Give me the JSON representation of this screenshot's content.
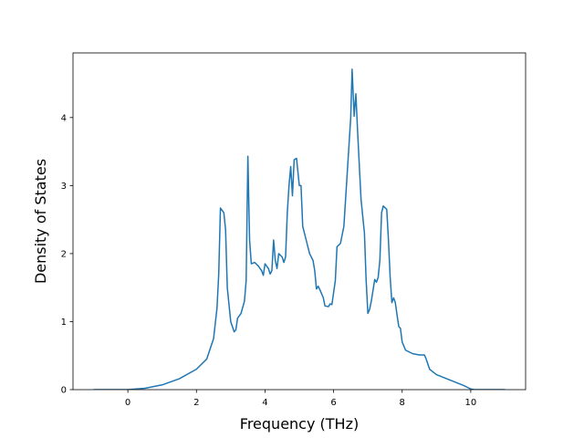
{
  "chart_data": {
    "type": "line",
    "xlabel": "Frequency (THz)",
    "ylabel": "Density of States",
    "xlim": [
      -1.6,
      11.6
    ],
    "ylim": [
      0,
      4.95
    ],
    "xticks": [
      0,
      2,
      4,
      6,
      8,
      10
    ],
    "yticks": [
      0,
      1,
      2,
      3,
      4
    ],
    "series": [
      {
        "color": "#1f77b4",
        "x": [
          -1,
          0,
          0.5,
          1,
          1.5,
          2,
          2.3,
          2.5,
          2.6,
          2.65,
          2.7,
          2.8,
          2.85,
          2.9,
          3.0,
          3.1,
          3.15,
          3.2,
          3.3,
          3.4,
          3.45,
          3.5,
          3.55,
          3.6,
          3.7,
          3.8,
          3.9,
          3.95,
          4.0,
          4.1,
          4.15,
          4.2,
          4.25,
          4.3,
          4.35,
          4.4,
          4.5,
          4.55,
          4.6,
          4.65,
          4.7,
          4.75,
          4.8,
          4.85,
          4.92,
          5.0,
          5.05,
          5.1,
          5.2,
          5.3,
          5.4,
          5.45,
          5.5,
          5.55,
          5.6,
          5.7,
          5.75,
          5.85,
          5.9,
          5.95,
          6.05,
          6.1,
          6.2,
          6.3,
          6.35,
          6.45,
          6.5,
          6.54,
          6.6,
          6.65,
          6.7,
          6.8,
          6.9,
          6.95,
          7.0,
          7.05,
          7.1,
          7.2,
          7.25,
          7.3,
          7.35,
          7.4,
          7.45,
          7.55,
          7.6,
          7.65,
          7.7,
          7.75,
          7.8,
          7.85,
          7.9,
          7.95,
          8.0,
          8.1,
          8.3,
          8.5,
          8.65,
          8.7,
          8.8,
          9.0,
          9.4,
          9.8,
          10.0,
          10.1,
          11
        ],
        "values": [
          0,
          0,
          0.02,
          0.07,
          0.16,
          0.3,
          0.45,
          0.75,
          1.2,
          1.7,
          2.67,
          2.6,
          2.35,
          1.5,
          1.0,
          0.85,
          0.88,
          1.05,
          1.12,
          1.3,
          1.6,
          3.43,
          2.2,
          1.85,
          1.87,
          1.82,
          1.75,
          1.68,
          1.85,
          1.78,
          1.7,
          1.75,
          2.2,
          1.9,
          1.78,
          2.0,
          1.95,
          1.87,
          1.95,
          2.6,
          3.0,
          3.28,
          2.85,
          3.38,
          3.4,
          3.0,
          3.0,
          2.4,
          2.2,
          2.0,
          1.9,
          1.75,
          1.48,
          1.52,
          1.47,
          1.35,
          1.23,
          1.22,
          1.26,
          1.25,
          1.6,
          2.1,
          2.15,
          2.4,
          2.8,
          3.6,
          4.0,
          4.71,
          4.02,
          4.35,
          3.8,
          2.8,
          2.3,
          1.6,
          1.12,
          1.18,
          1.3,
          1.62,
          1.58,
          1.65,
          1.9,
          2.6,
          2.7,
          2.65,
          2.2,
          1.65,
          1.28,
          1.35,
          1.28,
          1.1,
          0.93,
          0.9,
          0.7,
          0.58,
          0.53,
          0.51,
          0.51,
          0.45,
          0.3,
          0.22,
          0.14,
          0.06,
          0.01,
          0,
          0
        ]
      }
    ]
  }
}
